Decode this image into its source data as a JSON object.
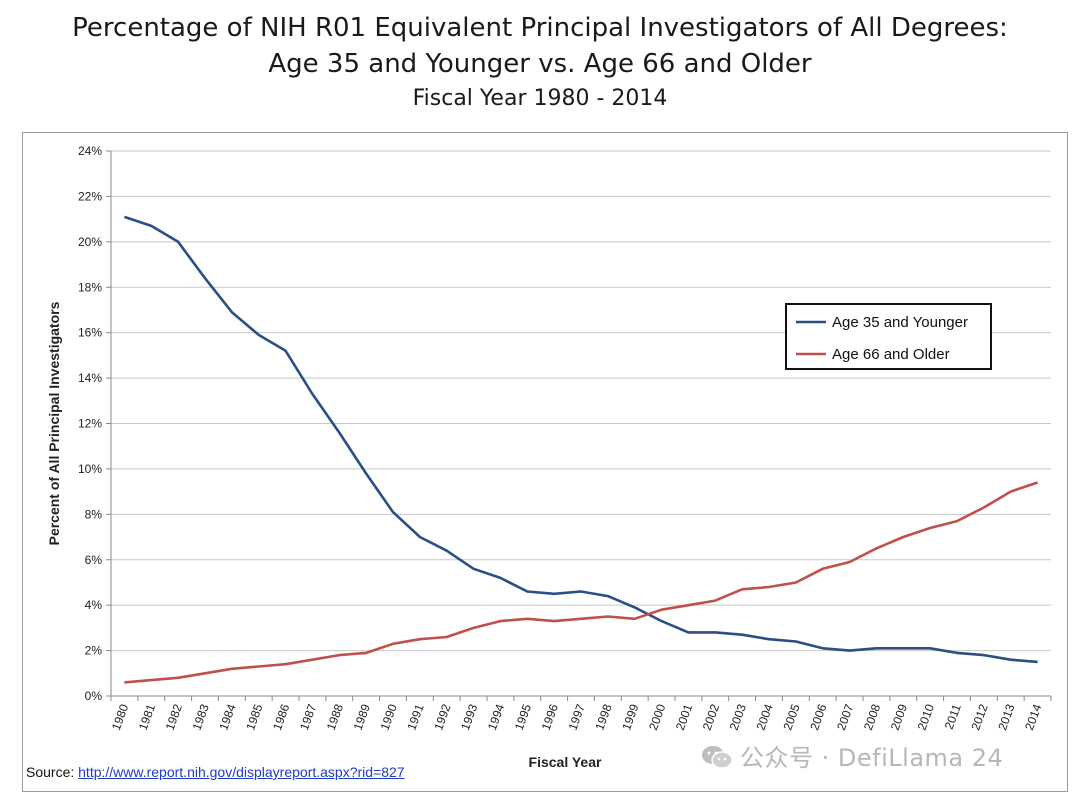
{
  "title": {
    "line1": "Percentage of NIH R01 Equivalent Principal Investigators of All Degrees:",
    "line2": "Age 35 and Younger vs. Age 66 and Older",
    "line3": "Fiscal Year 1980 - 2014"
  },
  "source": {
    "label": "Source: ",
    "link_text": "http://www.report.nih.gov/displayreport.aspx?rid=827"
  },
  "watermark": {
    "separator": "·",
    "text": "公众号",
    "account": "DefiLlama 24",
    "icon": "wechat-icon"
  },
  "colors": {
    "series_young": "#2a4f84",
    "series_old": "#c0504d",
    "grid": "#c8c8c8",
    "axis": "#888888"
  },
  "chart_data": {
    "type": "line",
    "xlabel": "Fiscal Year",
    "ylabel": "Percent of All Principal Investigators",
    "ylim": [
      0,
      24
    ],
    "y_ticks": [
      0,
      2,
      4,
      6,
      8,
      10,
      12,
      14,
      16,
      18,
      20,
      22,
      24
    ],
    "y_tick_suffix": "%",
    "grid": true,
    "legend_position": "right-center",
    "categories": [
      "1980",
      "1981",
      "1982",
      "1983",
      "1984",
      "1985",
      "1986",
      "1987",
      "1988",
      "1989",
      "1990",
      "1991",
      "1992",
      "1993",
      "1994",
      "1995",
      "1996",
      "1997",
      "1998",
      "1999",
      "2000",
      "2001",
      "2002",
      "2003",
      "2004",
      "2005",
      "2006",
      "2007",
      "2008",
      "2009",
      "2010",
      "2011",
      "2012",
      "2013",
      "2014"
    ],
    "series": [
      {
        "name": "Age 35 and Younger",
        "color": "#2a4f84",
        "values": [
          21.1,
          20.7,
          20.0,
          18.4,
          16.9,
          15.9,
          15.2,
          13.3,
          11.6,
          9.8,
          8.1,
          7.0,
          6.4,
          5.6,
          5.2,
          4.6,
          4.5,
          4.6,
          4.4,
          3.9,
          3.3,
          2.8,
          2.8,
          2.7,
          2.5,
          2.4,
          2.1,
          2.0,
          2.1,
          2.1,
          2.1,
          1.9,
          1.8,
          1.6,
          1.5
        ]
      },
      {
        "name": "Age 66 and Older",
        "color": "#c0504d",
        "values": [
          0.6,
          0.7,
          0.8,
          1.0,
          1.2,
          1.3,
          1.4,
          1.6,
          1.8,
          1.9,
          2.3,
          2.5,
          2.6,
          3.0,
          3.3,
          3.4,
          3.3,
          3.4,
          3.5,
          3.4,
          3.8,
          4.0,
          4.2,
          4.7,
          4.8,
          5.0,
          5.6,
          5.9,
          6.5,
          7.0,
          7.4,
          7.7,
          8.3,
          9.0,
          9.4
        ]
      }
    ]
  }
}
